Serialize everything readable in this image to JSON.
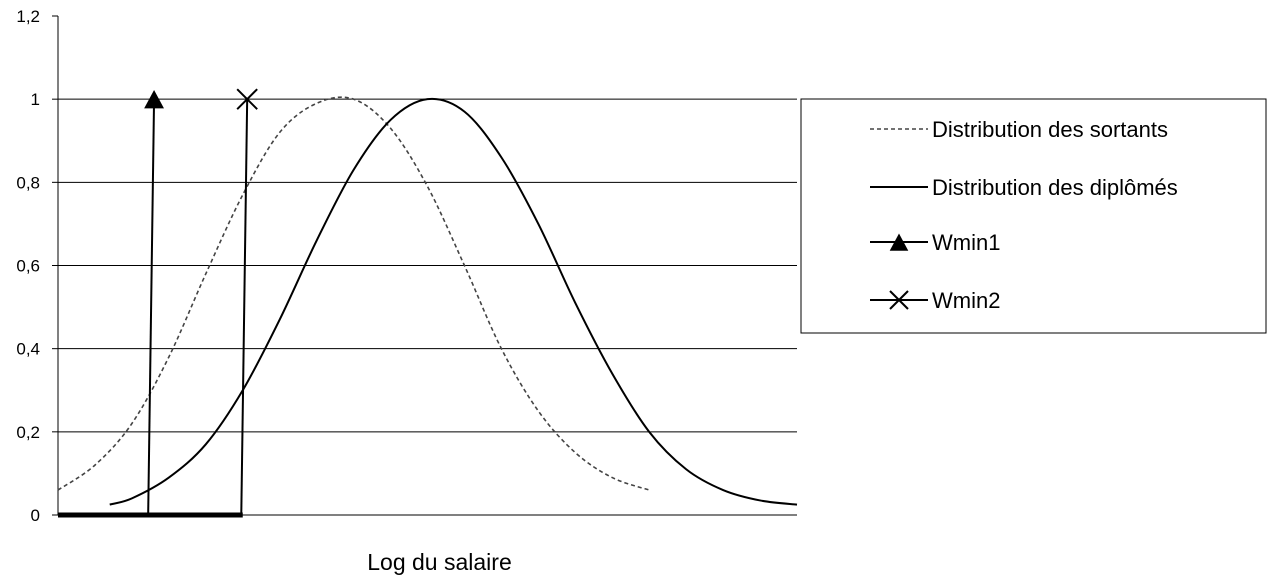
{
  "chart_data": {
    "type": "line",
    "title": "",
    "xlabel": "Log du salaire",
    "ylabel": "",
    "xlim": [
      0,
      100
    ],
    "ylim": [
      0,
      1.2
    ],
    "y_ticks": [
      "0",
      "0,2",
      "0,4",
      "0,6",
      "0,8",
      "1",
      "1,2"
    ],
    "y_tick_values": [
      0,
      0.2,
      0.4,
      0.6,
      0.8,
      1,
      1.2
    ],
    "grid": "horizontal",
    "legend_position": "right",
    "colors": {
      "line": "#000000",
      "sortants": "#444444",
      "grid": "#000000"
    },
    "series": [
      {
        "name": "Distribution des sortants",
        "style": "dashed",
        "x": [
          0,
          5,
          10,
          15,
          20,
          25,
          30,
          35,
          40,
          45,
          50,
          55,
          60,
          65,
          70,
          75,
          80
        ],
        "y": [
          0.06,
          0.12,
          0.22,
          0.38,
          0.58,
          0.77,
          0.92,
          0.99,
          1.0,
          0.93,
          0.79,
          0.6,
          0.4,
          0.25,
          0.15,
          0.09,
          0.06
        ]
      },
      {
        "name": "Distribution des diplômés",
        "style": "solid",
        "x": [
          7,
          10,
          15,
          20,
          25,
          30,
          35,
          40,
          45,
          50,
          55,
          60,
          65,
          70,
          75,
          80,
          85,
          90,
          95,
          100
        ],
        "y": [
          0.025,
          0.04,
          0.09,
          0.17,
          0.3,
          0.47,
          0.66,
          0.83,
          0.95,
          1.0,
          0.97,
          0.86,
          0.7,
          0.51,
          0.34,
          0.2,
          0.11,
          0.06,
          0.035,
          0.025
        ]
      },
      {
        "name": "Wmin1",
        "marker": "triangle",
        "x": [
          12.2,
          13
        ],
        "y": [
          0,
          1
        ]
      },
      {
        "name": "Wmin2",
        "marker": "cross",
        "x": [
          24.8,
          25.6
        ],
        "y": [
          0,
          1
        ]
      }
    ],
    "highlight_segment": {
      "x": [
        0,
        25
      ],
      "y": 0
    }
  }
}
